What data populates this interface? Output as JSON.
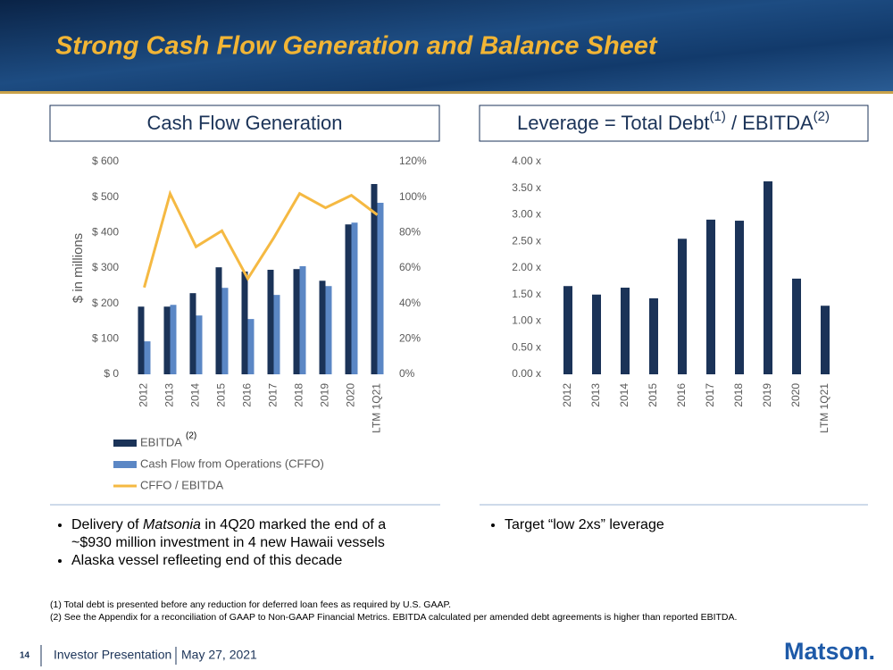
{
  "header": {
    "title": "Strong Cash Flow Generation and Balance Sheet"
  },
  "panels": [
    {
      "heading": [
        "Cash Flow Generation"
      ]
    },
    {
      "heading": [
        "Leverage = Total Debt",
        "(1)",
        " / EBITDA",
        "(2)"
      ]
    }
  ],
  "chart_data": [
    {
      "type": "bar",
      "y_label": "$ in millions",
      "categories": [
        "2012",
        "2013",
        "2014",
        "2015",
        "2016",
        "2017",
        "2018",
        "2019",
        "2020",
        "LTM 1Q21"
      ],
      "series": [
        {
          "name": "EBITDA",
          "color": "#1b3358",
          "values": [
            191,
            191,
            229,
            302,
            290,
            295,
            297,
            264,
            423,
            537
          ]
        },
        {
          "name": "Cash Flow from Operations (CFFO)",
          "color": "#5b87c5",
          "values": [
            93,
            196,
            166,
            244,
            156,
            224,
            305,
            249,
            428,
            484
          ]
        },
        {
          "name": "CFFO / EBITDA",
          "color": "#f5b942",
          "type": "line",
          "axis": "y2",
          "values": [
            49,
            102,
            72,
            81,
            54,
            77,
            102,
            94,
            101,
            90
          ]
        }
      ],
      "legend_note": "(2)",
      "ylim": [
        0,
        600
      ],
      "yticks": [
        {
          "value": 0,
          "label": "$ 0"
        },
        {
          "value": 100,
          "label": "$ 100"
        },
        {
          "value": 200,
          "label": "$ 200"
        },
        {
          "value": 300,
          "label": "$ 300"
        },
        {
          "value": 400,
          "label": "$ 400"
        },
        {
          "value": 500,
          "label": "$ 500"
        },
        {
          "value": 600,
          "label": "$ 600"
        }
      ],
      "y2lim": [
        0,
        120
      ],
      "y2ticks": [
        {
          "value": 0,
          "label": "0%"
        },
        {
          "value": 20,
          "label": "20%"
        },
        {
          "value": 40,
          "label": "40%"
        },
        {
          "value": 60,
          "label": "60%"
        },
        {
          "value": 80,
          "label": "80%"
        },
        {
          "value": 100,
          "label": "100%"
        },
        {
          "value": 120,
          "label": "120%"
        }
      ],
      "grid": false,
      "legend": "bottom"
    },
    {
      "type": "bar",
      "categories": [
        "2012",
        "2013",
        "2014",
        "2015",
        "2016",
        "2017",
        "2018",
        "2019",
        "2020",
        "LTM 1Q21"
      ],
      "values": [
        1.66,
        1.5,
        1.63,
        1.43,
        2.55,
        2.91,
        2.89,
        3.63,
        1.8,
        1.29
      ],
      "color": "#1b3358",
      "ylim": [
        0,
        4
      ],
      "yticks": [
        {
          "value": 0,
          "label": "0.00 x"
        },
        {
          "value": 0.5,
          "label": "0.50 x"
        },
        {
          "value": 1,
          "label": "1.00 x"
        },
        {
          "value": 1.5,
          "label": "1.50 x"
        },
        {
          "value": 2,
          "label": "2.00 x"
        },
        {
          "value": 2.5,
          "label": "2.50 x"
        },
        {
          "value": 3,
          "label": "3.00 x"
        },
        {
          "value": 3.5,
          "label": "3.50 x"
        },
        {
          "value": 4,
          "label": "4.00 x"
        }
      ],
      "grid": false
    }
  ],
  "bullets": {
    "left": [
      [
        "Delivery of ",
        "Matsonia",
        " in 4Q20 marked the end of a ~$930 million investment in 4 new Hawaii vessels"
      ],
      [
        "Alaska vessel refleeting end of this decade"
      ]
    ],
    "right": [
      [
        "Target “low 2xs” leverage"
      ]
    ]
  },
  "footnotes": [
    "(1) Total debt is presented before any reduction for deferred loan fees as required by U.S. GAAP.",
    "(2) See the Appendix for a reconciliation of GAAP to Non-GAAP Financial Metrics.  EBITDA calculated per amended debt agreements is higher than reported EBITDA."
  ],
  "footer": {
    "page": "14",
    "presentation": "Investor Presentation",
    "date": "May 27, 2021",
    "logo": "Matson."
  }
}
